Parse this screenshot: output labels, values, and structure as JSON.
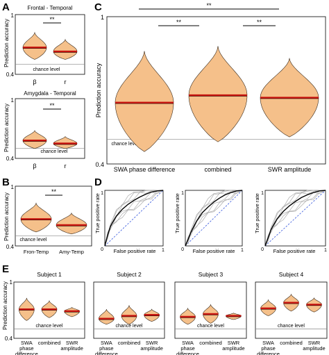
{
  "panel_labels": [
    "A",
    "B",
    "C",
    "D",
    "E"
  ],
  "texts": {
    "ylabel": "Prediction accuracy",
    "chance": "chance level",
    "sig": "**",
    "tpr": "True positive rate",
    "fpr": "False positive rate",
    "fpr_short": "False positive rate"
  },
  "colors": {
    "violin_fill": "#f5c08a",
    "median": "#c8140f",
    "roc_diagonal": "#3355dd"
  },
  "chart_data": [
    {
      "panel": "A-top",
      "type": "violin",
      "title": "Frontal - Temporal",
      "categories": [
        "β",
        "r"
      ],
      "ylim": [
        0.4,
        1
      ],
      "yticks": [
        "1",
        "0.4"
      ],
      "ylabel": "Prediction accuracy",
      "chance_level": 0.5,
      "values": [
        0.67,
        0.63
      ],
      "extent": [
        [
          0.55,
          0.82
        ],
        [
          0.55,
          0.75
        ]
      ],
      "significance": [
        {
          "pair": [
            0,
            1
          ],
          "label": "**"
        }
      ]
    },
    {
      "panel": "A-bottom",
      "type": "violin",
      "title": "Amygdala - Temporal",
      "categories": [
        "β",
        "r"
      ],
      "ylim": [
        0.4,
        1
      ],
      "yticks": [
        "1",
        "0.4"
      ],
      "ylabel": "Prediction accuracy",
      "chance_level": 0.5,
      "values": [
        0.58,
        0.55
      ],
      "extent": [
        [
          0.5,
          0.68
        ],
        [
          0.5,
          0.62
        ]
      ],
      "significance": [
        {
          "pair": [
            0,
            1
          ],
          "label": "**"
        }
      ]
    },
    {
      "panel": "B",
      "type": "violin",
      "categories": [
        "Fron-Temp",
        "Amy-Temp"
      ],
      "ylim": [
        0.4,
        1
      ],
      "yticks": [
        "1",
        "0.4"
      ],
      "ylabel": "Prediction accuracy",
      "chance_level": 0.5,
      "values": [
        0.67,
        0.61
      ],
      "extent": [
        [
          0.54,
          0.83
        ],
        [
          0.52,
          0.73
        ]
      ],
      "significance": [
        {
          "pair": [
            0,
            1
          ],
          "label": "**"
        }
      ]
    },
    {
      "panel": "C",
      "type": "violin",
      "categories": [
        "SWA phase difference",
        "combined",
        "SWR amplitude"
      ],
      "ylim": [
        0.4,
        1
      ],
      "yticks": [
        "1",
        "0.4"
      ],
      "ylabel": "Prediction accuracy",
      "chance_level": 0.5,
      "values": [
        0.65,
        0.68,
        0.67
      ],
      "extent": [
        [
          0.45,
          0.86
        ],
        [
          0.49,
          0.88
        ],
        [
          0.51,
          0.83
        ]
      ],
      "significance": [
        {
          "pair": [
            0,
            1
          ],
          "label": "**"
        },
        {
          "pair": [
            1,
            2
          ],
          "label": "**"
        },
        {
          "pair": [
            0,
            2
          ],
          "label": "**"
        }
      ]
    },
    {
      "panel": "D",
      "type": "line",
      "subtype": "roc",
      "xlabel": "False positive rate",
      "ylabel": "True positive rate",
      "xlim": [
        0,
        1
      ],
      "ylim": [
        0,
        1
      ],
      "plots": [
        {
          "mean": [
            [
              0,
              0
            ],
            [
              0.05,
              0.2
            ],
            [
              0.1,
              0.36
            ],
            [
              0.2,
              0.54
            ],
            [
              0.3,
              0.66
            ],
            [
              0.4,
              0.75
            ],
            [
              0.5,
              0.82
            ],
            [
              0.6,
              0.88
            ],
            [
              0.7,
              0.93
            ],
            [
              0.8,
              0.97
            ],
            [
              0.9,
              0.99
            ],
            [
              1,
              1
            ]
          ]
        },
        {
          "mean": [
            [
              0,
              0
            ],
            [
              0.05,
              0.12
            ],
            [
              0.1,
              0.25
            ],
            [
              0.2,
              0.45
            ],
            [
              0.3,
              0.6
            ],
            [
              0.4,
              0.7
            ],
            [
              0.5,
              0.79
            ],
            [
              0.6,
              0.86
            ],
            [
              0.7,
              0.92
            ],
            [
              0.8,
              0.96
            ],
            [
              0.9,
              0.99
            ],
            [
              1,
              1
            ]
          ]
        },
        {
          "mean": [
            [
              0,
              0
            ],
            [
              0.05,
              0.15
            ],
            [
              0.1,
              0.3
            ],
            [
              0.2,
              0.49
            ],
            [
              0.3,
              0.62
            ],
            [
              0.4,
              0.72
            ],
            [
              0.5,
              0.8
            ],
            [
              0.6,
              0.87
            ],
            [
              0.7,
              0.92
            ],
            [
              0.8,
              0.96
            ],
            [
              0.9,
              0.99
            ],
            [
              1,
              1
            ]
          ]
        }
      ]
    },
    {
      "panel": "E",
      "type": "violin",
      "categories": [
        "SWA phase difference",
        "combined",
        "SWR amplitude"
      ],
      "ylim": [
        0.4,
        1
      ],
      "yticks": [
        "1",
        "0.4"
      ],
      "ylabel": "Prediction accuracy",
      "chance_level": 0.5,
      "subplots": [
        {
          "title": "Subject 1",
          "values": [
            0.71,
            0.71,
            0.69
          ],
          "extent": [
            [
              0.59,
              0.83
            ],
            [
              0.62,
              0.8
            ],
            [
              0.63,
              0.73
            ]
          ]
        },
        {
          "title": "Subject 2",
          "values": [
            0.61,
            0.64,
            0.65
          ],
          "extent": [
            [
              0.55,
              0.71
            ],
            [
              0.55,
              0.75
            ],
            [
              0.58,
              0.71
            ]
          ]
        },
        {
          "title": "Subject 3",
          "values": [
            0.63,
            0.66,
            0.64
          ],
          "extent": [
            [
              0.55,
              0.72
            ],
            [
              0.56,
              0.76
            ],
            [
              0.6,
              0.67
            ]
          ]
        },
        {
          "title": "Subject 4",
          "values": [
            0.72,
            0.78,
            0.76
          ],
          "extent": [
            [
              0.64,
              0.81
            ],
            [
              0.69,
              0.87
            ],
            [
              0.68,
              0.83
            ]
          ]
        }
      ]
    }
  ]
}
